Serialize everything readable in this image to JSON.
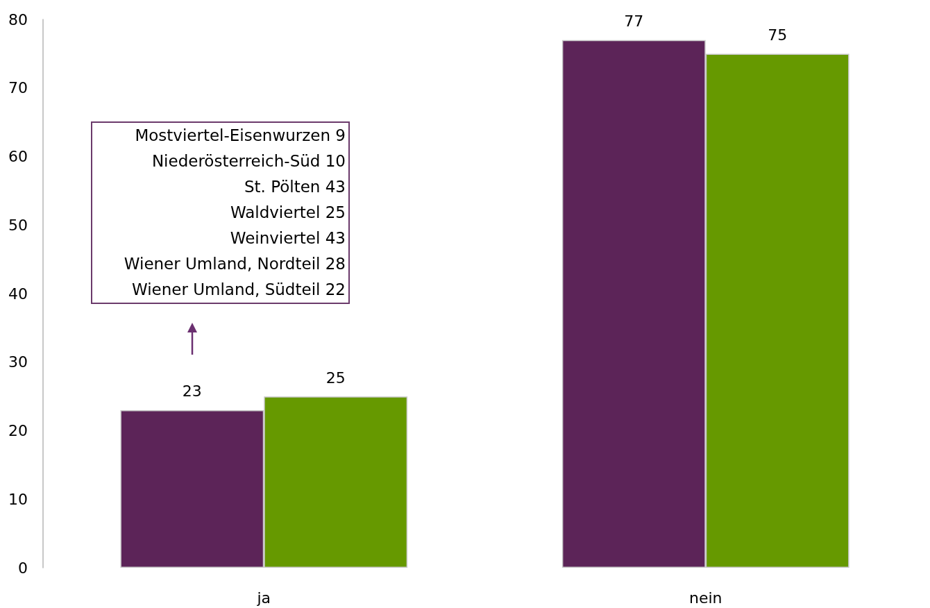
{
  "chart_data": {
    "type": "bar",
    "categories": [
      "ja",
      "nein"
    ],
    "series": [
      {
        "color": "#5c2458",
        "values": [
          23,
          77
        ]
      },
      {
        "color": "#669900",
        "values": [
          25,
          75
        ]
      }
    ],
    "ylim": [
      0,
      80
    ],
    "yticks": [
      0,
      10,
      20,
      30,
      40,
      50,
      60,
      70,
      80
    ],
    "grid": false,
    "data_labels": true,
    "annotations": [
      "Mostviertel-Eisenwurzen 9",
      "Niederösterreich-Süd 10",
      "St. Pölten 43",
      "Waldviertel 25",
      "Weinviertel 43",
      "Wiener Umland, Nordteil 28",
      "Wiener Umland, Südteil 22"
    ]
  }
}
